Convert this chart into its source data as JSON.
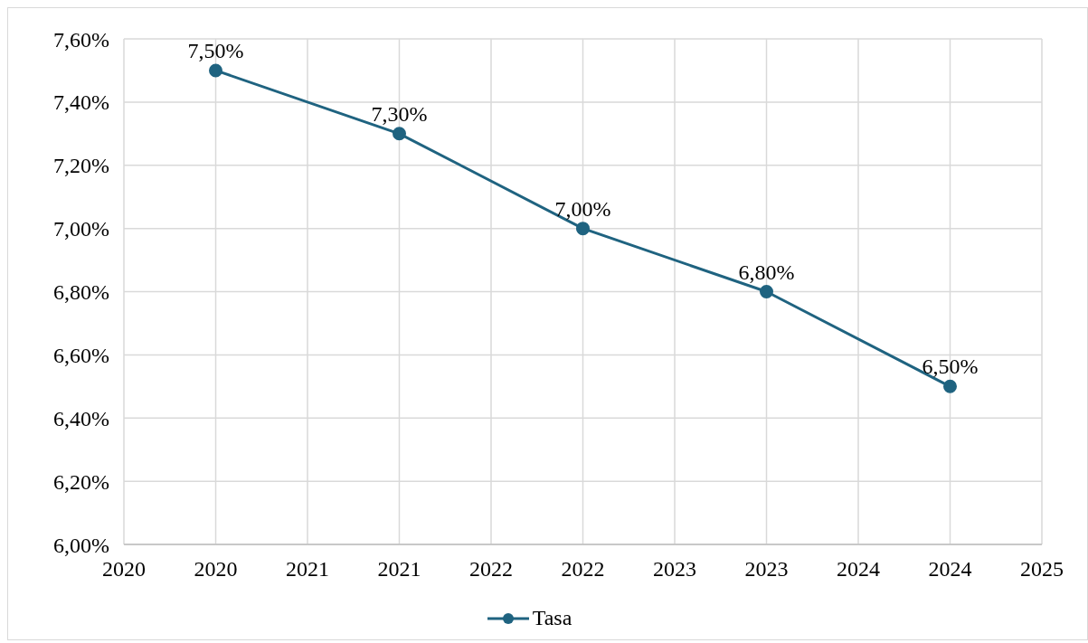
{
  "chart_data": {
    "type": "line",
    "x": [
      2020,
      2021,
      2022,
      2023,
      2024
    ],
    "series": [
      {
        "name": "Tasa",
        "color": "#1f6380",
        "values": [
          7.5,
          7.3,
          7.0,
          6.8,
          6.5
        ],
        "value_labels": [
          "7,50%",
          "7,30%",
          "7,00%",
          "6,80%",
          "6,50%"
        ]
      }
    ],
    "xlim": [
      2019.5,
      2024.5
    ],
    "xticks": [
      {
        "value": 2019.5,
        "label": "2020"
      },
      {
        "value": 2020,
        "label": "2020"
      },
      {
        "value": 2020.5,
        "label": "2021"
      },
      {
        "value": 2021,
        "label": "2021"
      },
      {
        "value": 2021.5,
        "label": "2022"
      },
      {
        "value": 2022,
        "label": "2022"
      },
      {
        "value": 2022.5,
        "label": "2023"
      },
      {
        "value": 2023,
        "label": "2023"
      },
      {
        "value": 2023.5,
        "label": "2024"
      },
      {
        "value": 2024,
        "label": "2024"
      },
      {
        "value": 2024.5,
        "label": "2025"
      }
    ],
    "ylim": [
      6.0,
      7.6
    ],
    "yticks": [
      {
        "value": 6.0,
        "label": "6,00%"
      },
      {
        "value": 6.2,
        "label": "6,20%"
      },
      {
        "value": 6.4,
        "label": "6,40%"
      },
      {
        "value": 6.6,
        "label": "6,60%"
      },
      {
        "value": 6.8,
        "label": "6,80%"
      },
      {
        "value": 7.0,
        "label": "7,00%"
      },
      {
        "value": 7.2,
        "label": "7,20%"
      },
      {
        "value": 7.4,
        "label": "7,40%"
      },
      {
        "value": 7.6,
        "label": "7,60%"
      }
    ],
    "grid": true,
    "legend": "bottom",
    "marker": "circle",
    "line_style": "solid"
  }
}
